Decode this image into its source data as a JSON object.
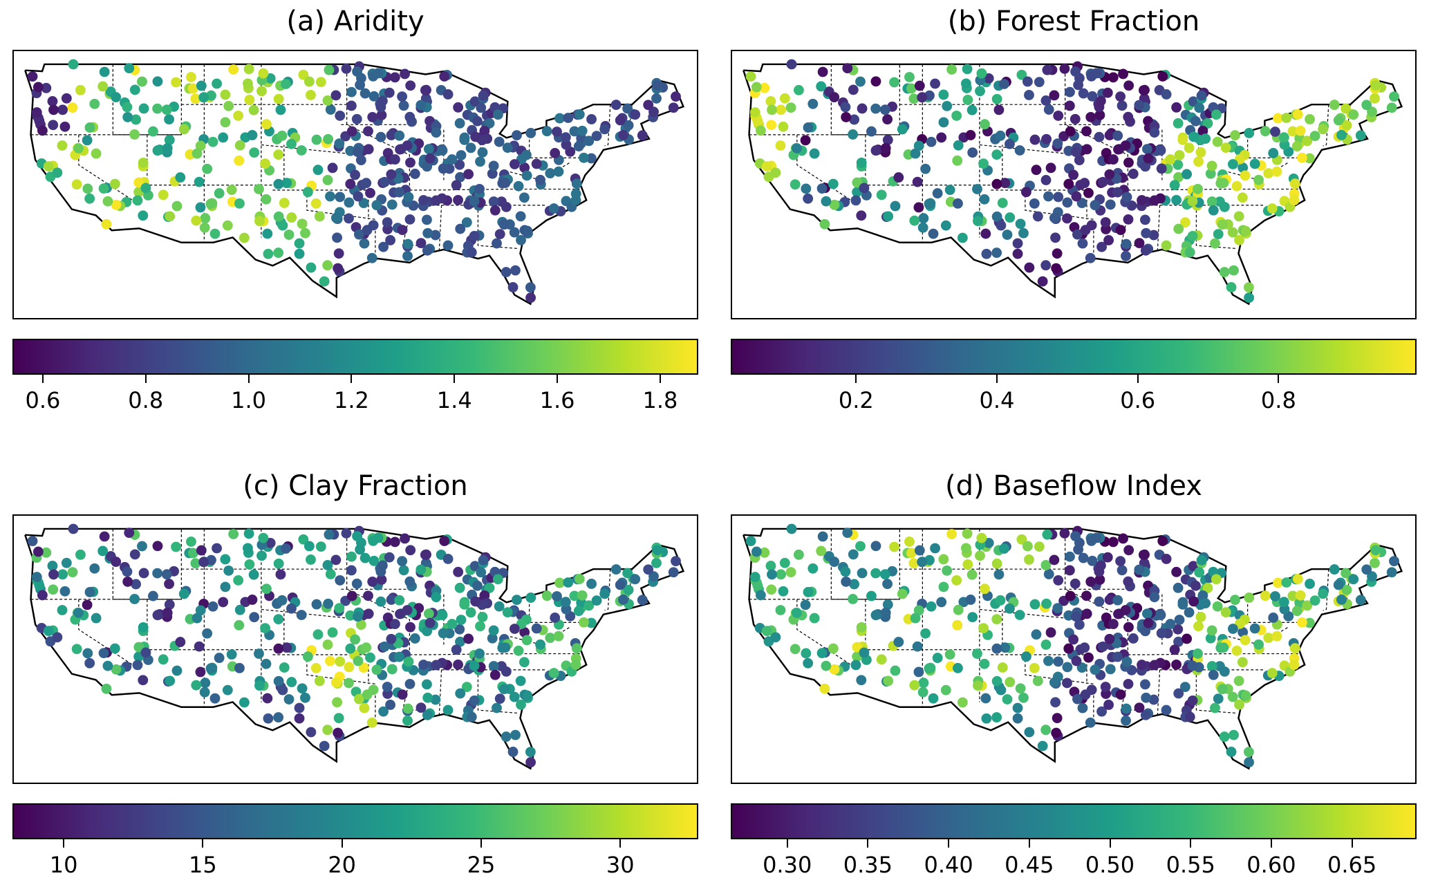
{
  "panels": [
    {
      "title": "(a) Aridity",
      "colorbar": {
        "min": 0.541,
        "max": 1.874,
        "ticks": [
          "0.6",
          "0.8",
          "1.0",
          "1.2",
          "1.4",
          "1.6",
          "1.8"
        ],
        "tick_values": [
          0.6,
          0.8,
          1.0,
          1.2,
          1.4,
          1.6,
          1.8
        ]
      },
      "pattern": "aridity"
    },
    {
      "title": "(b) Forest Fraction",
      "colorbar": {
        "min": 0.022,
        "max": 0.996,
        "ticks": [
          "0.2",
          "0.4",
          "0.6",
          "0.8"
        ],
        "tick_values": [
          0.2,
          0.4,
          0.6,
          0.8
        ]
      },
      "pattern": "forest"
    },
    {
      "title": "(c) Clay Fraction",
      "colorbar": {
        "min": 8.16,
        "max": 32.8,
        "ticks": [
          "10",
          "15",
          "20",
          "25",
          "30"
        ],
        "tick_values": [
          10,
          15,
          20,
          25,
          30
        ]
      },
      "pattern": "clay"
    },
    {
      "title": "(d) Baseflow Index",
      "colorbar": {
        "min": 0.265,
        "max": 0.69,
        "ticks": [
          "0.30",
          "0.35",
          "0.40",
          "0.45",
          "0.50",
          "0.55",
          "0.60",
          "0.65"
        ],
        "tick_values": [
          0.3,
          0.35,
          0.4,
          0.45,
          0.5,
          0.55,
          0.6,
          0.65
        ]
      },
      "pattern": "baseflow"
    }
  ],
  "colormap": [
    "#440154",
    "#482878",
    "#3e4989",
    "#31688e",
    "#26828e",
    "#1f9e89",
    "#35b779",
    "#6ece58",
    "#b5de2b",
    "#fde725"
  ]
}
